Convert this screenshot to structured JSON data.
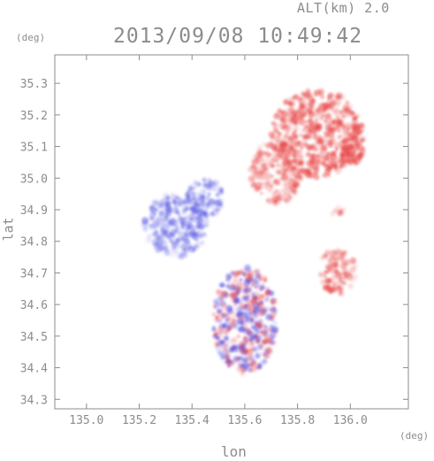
{
  "altitude_label": "ALT(km) 2.0",
  "timestamp": "2013/09/08 10:49:42",
  "unit_y": "(deg)",
  "unit_x": "(deg)",
  "xlabel": "lon",
  "ylabel": "lat",
  "colors": {
    "axis": "#8c8c8c",
    "positive": "#e84848",
    "negative": "#4848e0"
  },
  "chart_data": {
    "type": "heatmap",
    "xlabel": "lon",
    "ylabel": "lat",
    "xlim": [
      134.88,
      136.22
    ],
    "ylim": [
      34.27,
      35.39
    ],
    "xticks": [
      "135.0",
      "135.2",
      "135.4",
      "135.6",
      "135.8",
      "136.0"
    ],
    "yticks": [
      "34.3",
      "34.4",
      "34.5",
      "34.6",
      "34.7",
      "34.8",
      "34.9",
      "35.0",
      "35.1",
      "35.2",
      "35.3"
    ],
    "grid": false,
    "regions": [
      {
        "lon": [
          135.7,
          136.05
        ],
        "lat": [
          35.0,
          35.28
        ],
        "sign": "positive",
        "strength": 0.55
      },
      {
        "lon": [
          135.62,
          135.82
        ],
        "lat": [
          34.92,
          35.12
        ],
        "sign": "positive",
        "strength": 0.35
      },
      {
        "lon": [
          135.38,
          135.52
        ],
        "lat": [
          34.88,
          35.0
        ],
        "sign": "negative",
        "strength": 0.3
      },
      {
        "lon": [
          135.22,
          135.46
        ],
        "lat": [
          34.75,
          34.95
        ],
        "sign": "negative",
        "strength": 0.28
      },
      {
        "lon": [
          135.48,
          135.72
        ],
        "lat": [
          34.38,
          34.72
        ],
        "sign": "mixed",
        "strength": 0.6
      },
      {
        "lon": [
          135.88,
          136.02
        ],
        "lat": [
          34.63,
          34.78
        ],
        "sign": "positive",
        "strength": 0.45
      },
      {
        "lon": [
          135.97,
          136.05
        ],
        "lat": [
          35.04,
          35.17
        ],
        "sign": "positive",
        "strength": 0.9
      },
      {
        "lon": [
          135.93,
          135.98
        ],
        "lat": [
          34.88,
          34.91
        ],
        "sign": "positive",
        "strength": 0.4
      }
    ]
  }
}
